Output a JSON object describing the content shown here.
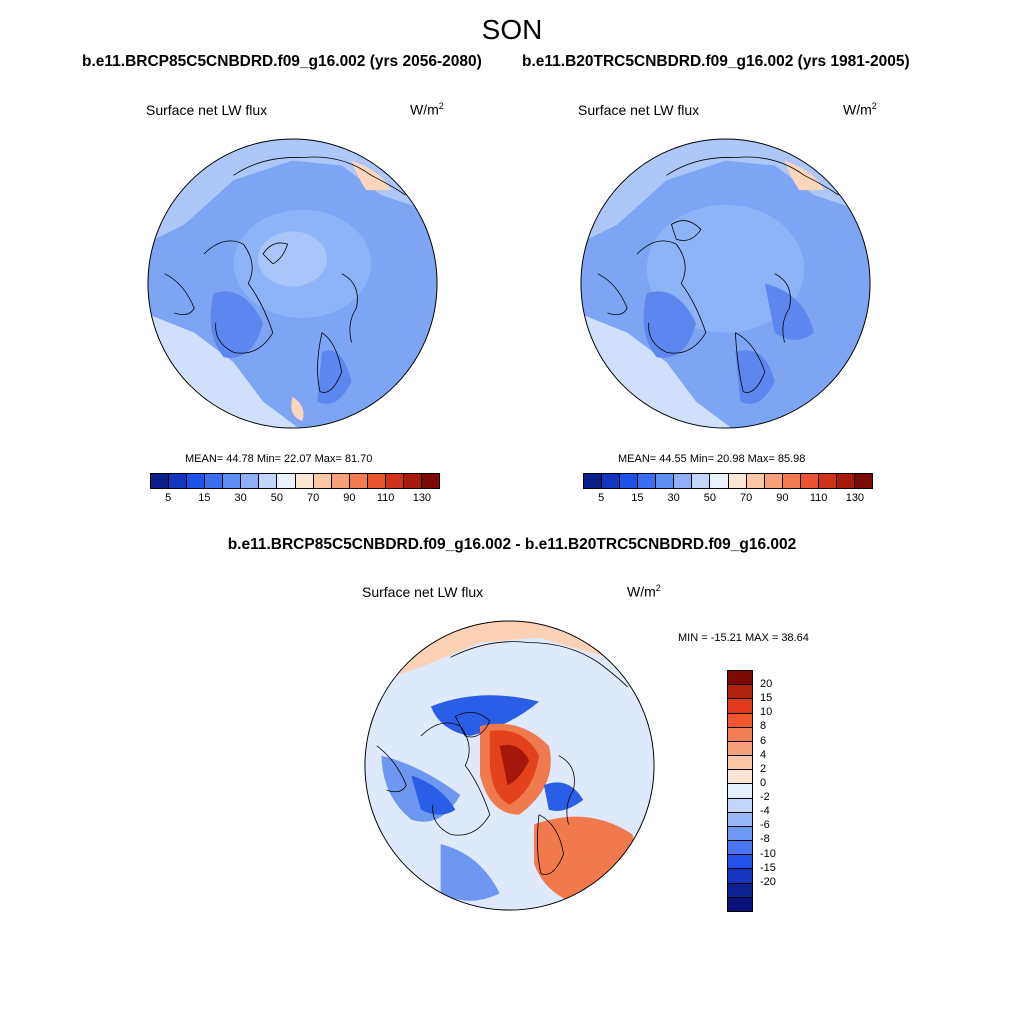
{
  "season": "SON",
  "left_case": "b.e11.BRCP85C5CNBDRD.f09_g16.002 (yrs 2056-2080)",
  "right_case": "b.e11.B20TRC5CNBDRD.f09_g16.002 (yrs 1981-2005)",
  "diff_case": "b.e11.BRCP85C5CNBDRD.f09_g16.002 - b.e11.B20TRC5CNBDRD.f09_g16.002",
  "variable": "Surface net LW flux",
  "units_base": "W/m",
  "units_exp": "2",
  "left_stats": "MEAN=  44.78  Min=  22.07  Max=  81.70",
  "right_stats": "MEAN=  44.55  Min=  20.98  Max=  85.98",
  "diff_stats": "MIN = -15.21 MAX =  38.64",
  "abs_colorbar": {
    "colors": [
      "#0a1f8c",
      "#1435bf",
      "#1c52e6",
      "#3a6ff2",
      "#5f8ff5",
      "#8fb0f8",
      "#c2d6fb",
      "#e8f1fd",
      "#fde6d2",
      "#fbc7a4",
      "#f8a077",
      "#f47a50",
      "#ea5530",
      "#cf3318",
      "#a81a0c",
      "#7c0a04"
    ],
    "labels": [
      "5",
      "15",
      "30",
      "50",
      "70",
      "90",
      "110",
      "130"
    ]
  },
  "diff_colorbar": {
    "colors": [
      "#7c0a04",
      "#b0210e",
      "#e1381a",
      "#f2582d",
      "#f47f56",
      "#f8a27c",
      "#fbc6a4",
      "#fde7d4",
      "#e6f0fd",
      "#c3d6fb",
      "#9ab9f8",
      "#6e9af5",
      "#4876f2",
      "#2350e6",
      "#1435bf",
      "#0b218f",
      "#07137a"
    ],
    "labels": [
      "20",
      "15",
      "10",
      "8",
      "6",
      "4",
      "2",
      "0",
      "-2",
      "-4",
      "-6",
      "-8",
      "-10",
      "-15",
      "-20"
    ]
  },
  "map_colors": {
    "ocean_abs": "#7da5f3",
    "land_abs": "#aec7f9",
    "deep_abs": "#5c87ee",
    "ice_abs": "#8fb3f7",
    "warm_abs": "#fbd6bd",
    "light_abs": "#d0e0fc",
    "diff_bg": "#dfe9fc",
    "diff_warm": "#fbd2b5",
    "diff_red": "#e2421c",
    "diff_darkred": "#a5170a",
    "diff_orange": "#f07a4e",
    "diff_blue": "#2a5ee6",
    "diff_midblue": "#6e97f2"
  }
}
